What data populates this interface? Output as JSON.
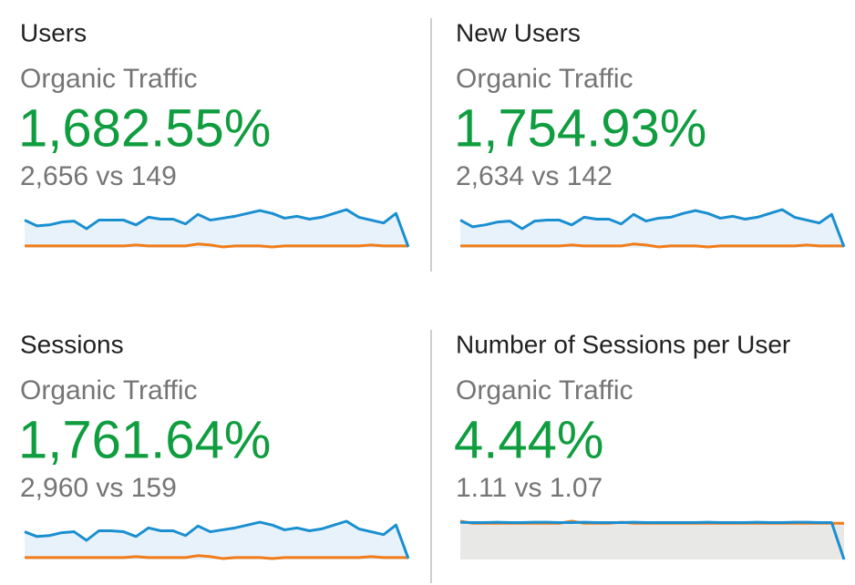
{
  "cards": [
    {
      "title": "Users",
      "subtitle": "Organic Traffic",
      "change": "1,682.55%",
      "comparison": "2,656 vs 149",
      "sparkline": {
        "current": {
          "color": "#1a8fd0",
          "fill": "#e8f2fb",
          "values": [
            29,
            23,
            24,
            27,
            28,
            20,
            29,
            29,
            29,
            24,
            32,
            30,
            30,
            25,
            35,
            29,
            31,
            33,
            36,
            39,
            36,
            31,
            33,
            30,
            32,
            36,
            40,
            32,
            29,
            26,
            36,
            1
          ]
        },
        "previous": {
          "color": "#f07d1a",
          "values": [
            2,
            2,
            2,
            2,
            2,
            2,
            2,
            2,
            2,
            3,
            2,
            2,
            2,
            2,
            4,
            3,
            1,
            2,
            2,
            2,
            1,
            2,
            2,
            2,
            2,
            2,
            2,
            2,
            3,
            2,
            2,
            2
          ]
        }
      }
    },
    {
      "title": "New Users",
      "subtitle": "Organic Traffic",
      "change": "1,754.93%",
      "comparison": "2,634 vs 142",
      "sparkline": {
        "current": {
          "color": "#1a8fd0",
          "fill": "#e8f2fb",
          "values": [
            29,
            22,
            24,
            27,
            28,
            20,
            28,
            29,
            29,
            24,
            32,
            30,
            30,
            25,
            35,
            28,
            31,
            32,
            36,
            39,
            36,
            31,
            33,
            30,
            32,
            36,
            40,
            32,
            29,
            26,
            35,
            1
          ]
        },
        "previous": {
          "color": "#f07d1a",
          "values": [
            2,
            2,
            2,
            2,
            2,
            2,
            2,
            2,
            2,
            3,
            2,
            2,
            2,
            2,
            4,
            3,
            1,
            2,
            2,
            2,
            1,
            2,
            2,
            2,
            2,
            2,
            2,
            2,
            3,
            2,
            2,
            2
          ]
        }
      }
    },
    {
      "title": "Sessions",
      "subtitle": "Organic Traffic",
      "change": "1,761.64%",
      "comparison": "2,960 vs 159",
      "sparkline": {
        "current": {
          "color": "#1a8fd0",
          "fill": "#e8f2fb",
          "values": [
            29,
            24,
            25,
            28,
            29,
            20,
            30,
            30,
            29,
            24,
            33,
            30,
            30,
            25,
            35,
            29,
            31,
            33,
            36,
            39,
            36,
            31,
            33,
            30,
            32,
            36,
            40,
            32,
            29,
            26,
            36,
            1
          ]
        },
        "previous": {
          "color": "#f07d1a",
          "values": [
            2,
            2,
            2,
            2,
            2,
            2,
            2,
            2,
            2,
            3,
            2,
            2,
            2,
            2,
            4,
            3,
            1,
            2,
            2,
            2,
            1,
            2,
            2,
            2,
            2,
            2,
            2,
            2,
            3,
            2,
            2,
            2
          ]
        }
      }
    },
    {
      "title": "Number of Sessions per User",
      "subtitle": "Organic Traffic",
      "change": "4.44%",
      "comparison": "1.11 vs 1.07",
      "sparkline": {
        "current": {
          "color": "#1a8fd0",
          "values": [
            1.1,
            1.09,
            1.09,
            1.1,
            1.09,
            1.09,
            1.1,
            1.1,
            1.09,
            1.09,
            1.1,
            1.09,
            1.09,
            1.09,
            1.1,
            1.09,
            1.09,
            1.09,
            1.09,
            1.09,
            1.1,
            1.09,
            1.09,
            1.09,
            1.1,
            1.09,
            1.09,
            1.1,
            1.1,
            1.09,
            1.09,
            0
          ]
        },
        "previous": {
          "color": "#f07d1a",
          "fill": "#e8e8e6",
          "values": [
            1.13,
            1.07,
            1.07,
            1.07,
            1.07,
            1.07,
            1.07,
            1.07,
            1.07,
            1.13,
            1.07,
            1.07,
            1.07,
            1.1,
            1.07,
            1.07,
            1.07,
            1.07,
            1.07,
            1.07,
            1.07,
            1.07,
            1.07,
            1.07,
            1.07,
            1.07,
            1.07,
            1.07,
            1.07,
            1.07,
            1.07,
            1.07
          ]
        }
      }
    }
  ]
}
